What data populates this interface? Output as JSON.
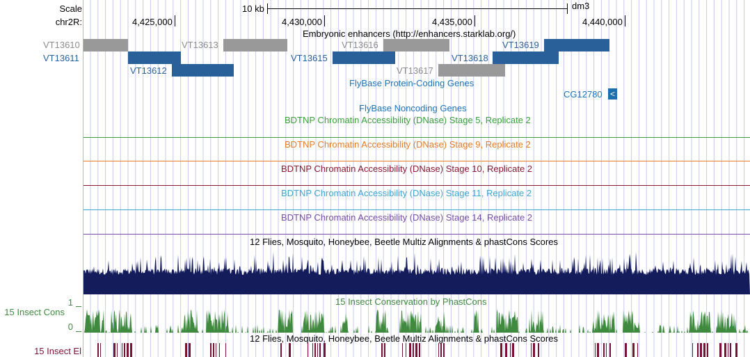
{
  "ruler": {
    "scale_label": "Scale",
    "chrom_label": "chr2R:",
    "scale_text": "10 kb",
    "assembly": "dm3",
    "positions": [
      "4,425,000",
      "4,430,000",
      "4,435,000",
      "4,440,000"
    ]
  },
  "tracks": {
    "enhancers": {
      "title": "Embryonic enhancers (http://enhancers.starklab.org/)",
      "features": [
        {
          "name": "VT13610",
          "color": "gray"
        },
        {
          "name": "VT13611",
          "color": "blue"
        },
        {
          "name": "VT13612",
          "color": "blue"
        },
        {
          "name": "VT13613",
          "color": "gray"
        },
        {
          "name": "VT13615",
          "color": "blue"
        },
        {
          "name": "VT13616",
          "color": "gray"
        },
        {
          "name": "VT13617",
          "color": "gray"
        },
        {
          "name": "VT13618",
          "color": "blue"
        },
        {
          "name": "VT13619",
          "color": "blue"
        }
      ]
    },
    "protein_coding": {
      "title": "FlyBase Protein-Coding Genes",
      "gene": "CG12780",
      "strand_glyph": "<"
    },
    "noncoding": {
      "title": "FlyBase Noncoding Genes"
    },
    "dnase": [
      {
        "title": "BDTNP Chromatin Accessibility (DNase) Stage 5, Replicate 2",
        "color": "#3aa03a"
      },
      {
        "title": "BDTNP Chromatin Accessibility (DNase) Stage 9, Replicate 2",
        "color": "#e87b24"
      },
      {
        "title": "BDTNP Chromatin Accessibility (DNase) Stage 10, Replicate 2",
        "color": "#8b1a2e"
      },
      {
        "title": "BDTNP Chromatin Accessibility (DNase) Stage 11, Replicate 2",
        "color": "#3fa6d4"
      },
      {
        "title": "BDTNP Chromatin Accessibility (DNase) Stage 14, Replicate 2",
        "color": "#7b4ea8"
      }
    ],
    "multiz": {
      "title": "12 Flies, Mosquito, Honeybee, Beetle Multiz Alignments & phastCons Scores",
      "color": "#141c5c"
    },
    "cons": {
      "title": "15 Insect Conservation by PhastCons",
      "side_label": "15 Insect Cons",
      "ymax": "1",
      "ymin": "0",
      "color": "#3f8a3f"
    },
    "elements": {
      "title": "12 Flies, Mosquito, Honeybee, Beetle Multiz Alignments & phastCons Scores",
      "side_label": "15 Insect El",
      "color": "#7a1236"
    }
  },
  "colors": {
    "link_blue": "#2a6099",
    "gene_blue": "#1b74b9",
    "label_gray": "#8c8c8c",
    "grid": "#c8c8f0",
    "left_border": "#f4a0a0"
  }
}
